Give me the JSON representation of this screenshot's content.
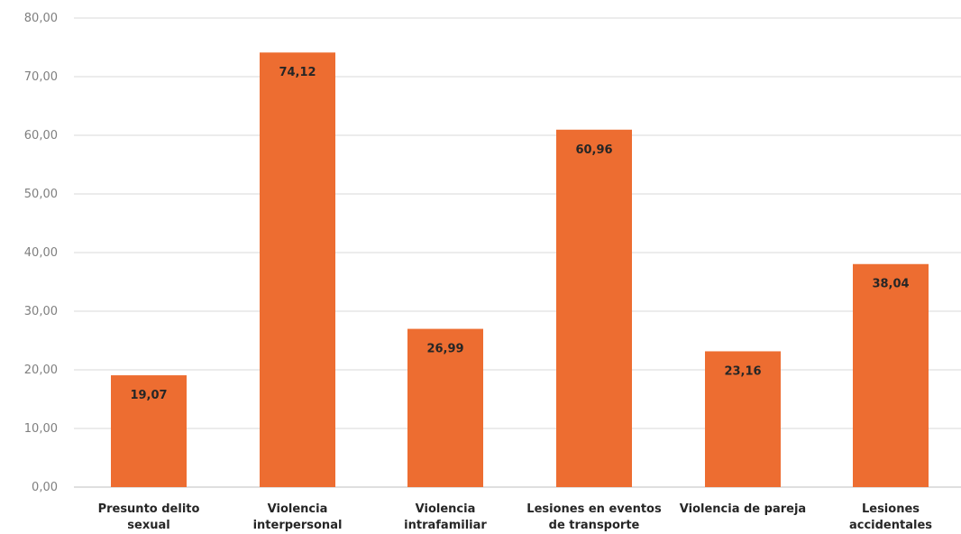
{
  "chart_data": {
    "type": "bar",
    "categories": [
      [
        "Presunto delito",
        "sexual"
      ],
      [
        "Violencia",
        "interpersonal"
      ],
      [
        "Violencia",
        "intrafamiliar"
      ],
      [
        "Lesiones en eventos",
        "de transporte"
      ],
      [
        "Violencia de pareja"
      ],
      [
        "Lesiones",
        "accidentales"
      ]
    ],
    "values": [
      19.07,
      74.12,
      26.99,
      60.96,
      23.16,
      38.04
    ],
    "value_labels": [
      "19,07",
      "74,12",
      "26,99",
      "60,96",
      "23,16",
      "38,04"
    ],
    "ylim": [
      0,
      80
    ],
    "yticks": [
      0,
      10,
      20,
      30,
      40,
      50,
      60,
      70,
      80
    ],
    "ytick_labels": [
      "0,00",
      "10,00",
      "20,00",
      "30,00",
      "40,00",
      "50,00",
      "60,00",
      "70,00",
      "80,00"
    ],
    "grid": true,
    "bar_color": "#ed6d31",
    "title": "",
    "xlabel": "",
    "ylabel": ""
  }
}
